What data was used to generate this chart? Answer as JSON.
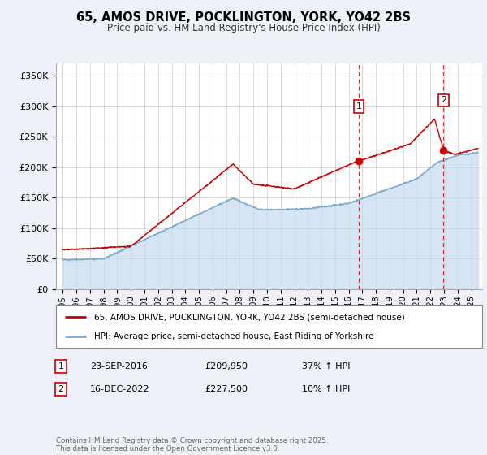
{
  "title": "65, AMOS DRIVE, POCKLINGTON, YORK, YO42 2BS",
  "subtitle": "Price paid vs. HM Land Registry's House Price Index (HPI)",
  "bg_color": "#eef2f8",
  "plot_bg_color": "#ffffff",
  "grid_color": "#cccccc",
  "red_color": "#cc0000",
  "blue_color": "#7aaacc",
  "blue_fill_color": "#c5daf0",
  "marker1_date_x": 2016.73,
  "marker1_y": 209950,
  "marker2_date_x": 2022.96,
  "marker2_y": 227500,
  "vline1_x": 2016.73,
  "vline2_x": 2022.96,
  "legend_line1": "65, AMOS DRIVE, POCKLINGTON, YORK, YO42 2BS (semi-detached house)",
  "legend_line2": "HPI: Average price, semi-detached house, East Riding of Yorkshire",
  "annotation1_box": "1",
  "annotation1_date": "23-SEP-2016",
  "annotation1_price": "£209,950",
  "annotation1_hpi": "37% ↑ HPI",
  "annotation2_box": "2",
  "annotation2_date": "16-DEC-2022",
  "annotation2_price": "£227,500",
  "annotation2_hpi": "10% ↑ HPI",
  "copyright": "Contains HM Land Registry data © Crown copyright and database right 2025.\nThis data is licensed under the Open Government Licence v3.0.",
  "ylim": [
    0,
    370000
  ],
  "xlim": [
    1994.5,
    2025.8
  ],
  "yticks": [
    0,
    50000,
    100000,
    150000,
    200000,
    250000,
    300000,
    350000
  ],
  "ytick_labels": [
    "£0",
    "£50K",
    "£100K",
    "£150K",
    "£200K",
    "£250K",
    "£300K",
    "£350K"
  ]
}
